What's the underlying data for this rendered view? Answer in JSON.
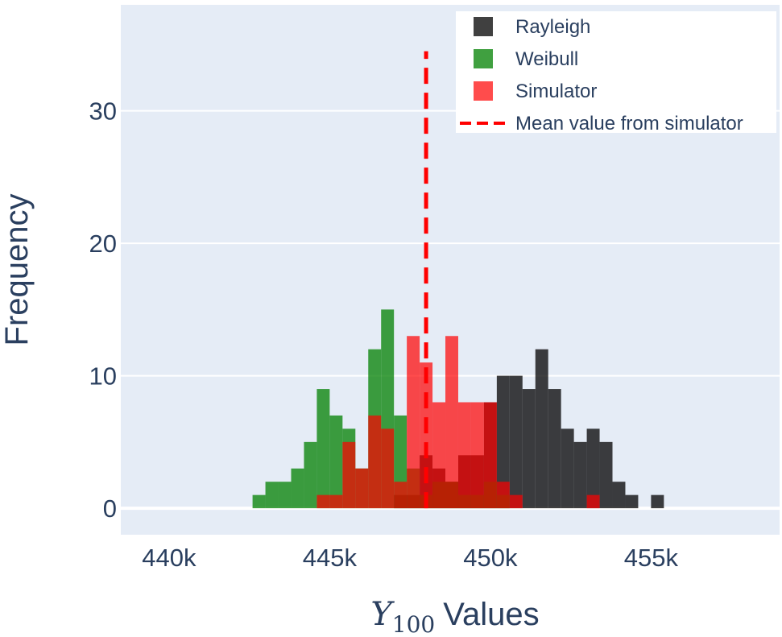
{
  "chart_data": {
    "type": "bar",
    "subtype": "overlaid histogram",
    "title": "",
    "xlabel": {
      "symbol": "Y",
      "subscript": "100",
      "text": "Values"
    },
    "ylabel": "Frequency",
    "xlim": [
      438500,
      459000
    ],
    "ylim": [
      -2,
      38
    ],
    "xticks": [
      440000,
      445000,
      450000,
      455000
    ],
    "xtick_labels": [
      "440k",
      "445k",
      "450k",
      "455k"
    ],
    "yticks": [
      0,
      10,
      20,
      30
    ],
    "ytick_labels": [
      "0",
      "10",
      "20",
      "30"
    ],
    "grid": true,
    "legend_position": "top-right",
    "bin_width": 400,
    "series": [
      {
        "name": "Rayleigh",
        "color": "#000000",
        "opacity": 0.75,
        "bins": [
          {
            "x0": 447000,
            "x1": 447400,
            "count": 1
          },
          {
            "x0": 447400,
            "x1": 447800,
            "count": 1
          },
          {
            "x0": 447800,
            "x1": 448200,
            "count": 4
          },
          {
            "x0": 448200,
            "x1": 448600,
            "count": 3
          },
          {
            "x0": 448600,
            "x1": 449000,
            "count": 2
          },
          {
            "x0": 449000,
            "x1": 449400,
            "count": 4
          },
          {
            "x0": 449400,
            "x1": 449800,
            "count": 4
          },
          {
            "x0": 449800,
            "x1": 450200,
            "count": 8
          },
          {
            "x0": 450200,
            "x1": 450600,
            "count": 10
          },
          {
            "x0": 450600,
            "x1": 451000,
            "count": 10
          },
          {
            "x0": 451000,
            "x1": 451400,
            "count": 9
          },
          {
            "x0": 451400,
            "x1": 451800,
            "count": 12
          },
          {
            "x0": 451800,
            "x1": 452200,
            "count": 9
          },
          {
            "x0": 452200,
            "x1": 452600,
            "count": 6
          },
          {
            "x0": 452600,
            "x1": 453000,
            "count": 5
          },
          {
            "x0": 453000,
            "x1": 453400,
            "count": 6
          },
          {
            "x0": 453400,
            "x1": 453800,
            "count": 5
          },
          {
            "x0": 453800,
            "x1": 454200,
            "count": 2
          },
          {
            "x0": 454200,
            "x1": 454600,
            "count": 1
          },
          {
            "x0": 455000,
            "x1": 455400,
            "count": 1
          }
        ]
      },
      {
        "name": "Weibull",
        "color": "#008000",
        "opacity": 0.75,
        "bins": [
          {
            "x0": 442600,
            "x1": 443000,
            "count": 1
          },
          {
            "x0": 443000,
            "x1": 443400,
            "count": 2
          },
          {
            "x0": 443400,
            "x1": 443800,
            "count": 2
          },
          {
            "x0": 443800,
            "x1": 444200,
            "count": 3
          },
          {
            "x0": 444200,
            "x1": 444600,
            "count": 5
          },
          {
            "x0": 444600,
            "x1": 445000,
            "count": 9
          },
          {
            "x0": 445000,
            "x1": 445400,
            "count": 7
          },
          {
            "x0": 445400,
            "x1": 445800,
            "count": 6
          },
          {
            "x0": 445800,
            "x1": 446200,
            "count": 3
          },
          {
            "x0": 446200,
            "x1": 446600,
            "count": 12
          },
          {
            "x0": 446600,
            "x1": 447000,
            "count": 15
          },
          {
            "x0": 447000,
            "x1": 447400,
            "count": 7
          },
          {
            "x0": 447400,
            "x1": 447800,
            "count": 3
          },
          {
            "x0": 447800,
            "x1": 448200,
            "count": 1
          },
          {
            "x0": 448200,
            "x1": 448600,
            "count": 2
          },
          {
            "x0": 448600,
            "x1": 449000,
            "count": 2
          },
          {
            "x0": 449000,
            "x1": 449400,
            "count": 1
          },
          {
            "x0": 449400,
            "x1": 449800,
            "count": 1
          },
          {
            "x0": 449800,
            "x1": 450200,
            "count": 2
          },
          {
            "x0": 450200,
            "x1": 450600,
            "count": 1
          }
        ]
      },
      {
        "name": "Simulator",
        "color": "#ff0000",
        "opacity": 0.7,
        "bins": [
          {
            "x0": 444600,
            "x1": 445000,
            "count": 1
          },
          {
            "x0": 445000,
            "x1": 445400,
            "count": 1
          },
          {
            "x0": 445400,
            "x1": 445800,
            "count": 5
          },
          {
            "x0": 445800,
            "x1": 446200,
            "count": 3
          },
          {
            "x0": 446200,
            "x1": 446600,
            "count": 7
          },
          {
            "x0": 446600,
            "x1": 447000,
            "count": 6
          },
          {
            "x0": 447000,
            "x1": 447400,
            "count": 2
          },
          {
            "x0": 447400,
            "x1": 447800,
            "count": 13
          },
          {
            "x0": 447800,
            "x1": 448200,
            "count": 11
          },
          {
            "x0": 448200,
            "x1": 448600,
            "count": 8
          },
          {
            "x0": 448600,
            "x1": 449000,
            "count": 13
          },
          {
            "x0": 449000,
            "x1": 449400,
            "count": 8
          },
          {
            "x0": 449400,
            "x1": 449800,
            "count": 8
          },
          {
            "x0": 449800,
            "x1": 450200,
            "count": 8
          },
          {
            "x0": 450200,
            "x1": 450600,
            "count": 2
          },
          {
            "x0": 450600,
            "x1": 451000,
            "count": 1
          },
          {
            "x0": 453000,
            "x1": 453400,
            "count": 1
          }
        ]
      }
    ],
    "reference_lines": [
      {
        "name": "Mean value from simulator",
        "x": 448000,
        "color": "#ff0000",
        "dash": "dash",
        "y_range": [
          0,
          34.5
        ]
      }
    ]
  }
}
